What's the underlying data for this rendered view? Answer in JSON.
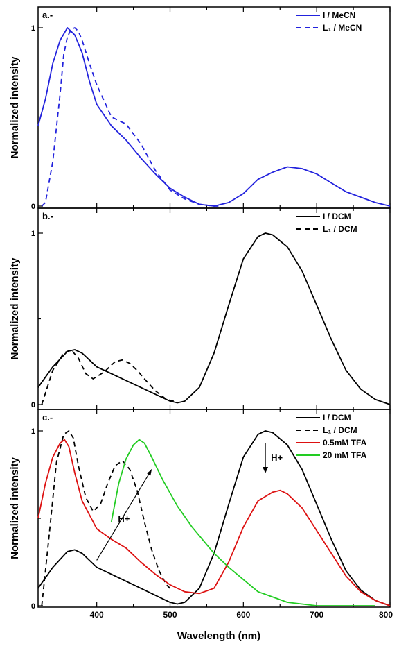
{
  "chart_data": [
    {
      "panel": "a.-",
      "type": "line",
      "ylabel": "Normalized intensity",
      "xlim": [
        320,
        800
      ],
      "ylim": [
        0,
        1.0
      ],
      "ytick_labels": [
        "0",
        "1"
      ],
      "legend_position": "top-right",
      "series": [
        {
          "name": "I / MeCN",
          "color": "#2222dd",
          "dash": "solid",
          "x": [
            320,
            330,
            340,
            350,
            360,
            365,
            370,
            380,
            390,
            400,
            420,
            440,
            460,
            480,
            500,
            520,
            540,
            560,
            580,
            600,
            620,
            640,
            660,
            680,
            700,
            720,
            740,
            760,
            780,
            800
          ],
          "y": [
            0.45,
            0.6,
            0.8,
            0.93,
            1.0,
            0.98,
            0.96,
            0.86,
            0.7,
            0.57,
            0.45,
            0.37,
            0.27,
            0.18,
            0.1,
            0.05,
            0.01,
            0.0,
            0.02,
            0.07,
            0.15,
            0.19,
            0.22,
            0.21,
            0.18,
            0.13,
            0.08,
            0.05,
            0.02,
            0.0
          ]
        },
        {
          "name": "L₁ / MeCN",
          "color": "#2222dd",
          "dash": "dashed",
          "x": [
            325,
            330,
            340,
            350,
            355,
            360,
            365,
            370,
            375,
            380,
            390,
            400,
            420,
            440,
            460,
            480,
            500,
            520,
            540,
            560,
            570
          ],
          "y": [
            0.0,
            0.02,
            0.25,
            0.63,
            0.85,
            0.95,
            0.99,
            1.0,
            0.98,
            0.93,
            0.8,
            0.68,
            0.5,
            0.46,
            0.35,
            0.2,
            0.09,
            0.04,
            0.01,
            0.0,
            0.0
          ]
        }
      ]
    },
    {
      "panel": "b.-",
      "type": "line",
      "ylabel": "Normalized intensity",
      "xlim": [
        320,
        800
      ],
      "ylim": [
        0,
        1.0
      ],
      "ytick_labels": [
        "0",
        "1"
      ],
      "legend_position": "top-right",
      "series": [
        {
          "name": "I / DCM",
          "color": "#000000",
          "dash": "solid",
          "x": [
            320,
            340,
            360,
            370,
            380,
            400,
            420,
            440,
            460,
            480,
            500,
            510,
            520,
            540,
            560,
            580,
            600,
            620,
            630,
            640,
            660,
            680,
            700,
            720,
            740,
            760,
            780,
            800
          ],
          "y": [
            0.1,
            0.22,
            0.31,
            0.32,
            0.3,
            0.22,
            0.18,
            0.14,
            0.1,
            0.06,
            0.02,
            0.01,
            0.02,
            0.1,
            0.3,
            0.58,
            0.85,
            0.98,
            1.0,
            0.99,
            0.92,
            0.78,
            0.58,
            0.38,
            0.2,
            0.09,
            0.03,
            0.0
          ]
        },
        {
          "name": "L₁ / DCM",
          "color": "#000000",
          "dash": "dashed",
          "x": [
            325,
            340,
            355,
            365,
            375,
            385,
            395,
            410,
            425,
            435,
            445,
            455,
            465,
            480,
            495,
            505
          ],
          "y": [
            0.0,
            0.2,
            0.3,
            0.32,
            0.27,
            0.18,
            0.15,
            0.19,
            0.25,
            0.26,
            0.24,
            0.2,
            0.15,
            0.08,
            0.03,
            0.02
          ]
        }
      ]
    },
    {
      "panel": "c.-",
      "type": "line",
      "ylabel": "Normalized intensity",
      "xlabel": "Wavelength (nm)",
      "xlim": [
        320,
        800
      ],
      "ylim": [
        0,
        1.0
      ],
      "ytick_labels": [
        "0",
        "1"
      ],
      "xtick_labels": [
        "400",
        "500",
        "600",
        "700",
        "800"
      ],
      "legend_position": "top-right",
      "series": [
        {
          "name": "I / DCM",
          "color": "#000000",
          "dash": "solid",
          "x": [
            320,
            340,
            360,
            370,
            380,
            400,
            420,
            440,
            460,
            480,
            500,
            510,
            520,
            540,
            560,
            580,
            600,
            620,
            630,
            640,
            660,
            680,
            700,
            720,
            740,
            760,
            780,
            800
          ],
          "y": [
            0.1,
            0.22,
            0.31,
            0.32,
            0.3,
            0.22,
            0.18,
            0.14,
            0.1,
            0.06,
            0.02,
            0.01,
            0.02,
            0.1,
            0.3,
            0.58,
            0.85,
            0.98,
            1.0,
            0.99,
            0.92,
            0.78,
            0.58,
            0.38,
            0.2,
            0.09,
            0.03,
            0.0
          ]
        },
        {
          "name": "L₁ / DCM",
          "color": "#000000",
          "dash": "dashed",
          "x": [
            325,
            335,
            345,
            355,
            362,
            368,
            375,
            385,
            395,
            405,
            415,
            425,
            435,
            445,
            455,
            465,
            475,
            485,
            495,
            500
          ],
          "y": [
            0.0,
            0.4,
            0.82,
            0.98,
            1.0,
            0.96,
            0.8,
            0.62,
            0.54,
            0.58,
            0.7,
            0.8,
            0.83,
            0.78,
            0.66,
            0.48,
            0.32,
            0.2,
            0.12,
            0.1
          ]
        },
        {
          "name": "0.5mM TFA",
          "color": "#dd1111",
          "dash": "solid",
          "x": [
            320,
            330,
            340,
            350,
            356,
            362,
            370,
            380,
            400,
            420,
            440,
            460,
            480,
            500,
            520,
            540,
            560,
            580,
            600,
            620,
            640,
            650,
            660,
            680,
            700,
            720,
            740,
            760,
            780,
            800
          ],
          "y": [
            0.5,
            0.7,
            0.85,
            0.93,
            0.95,
            0.91,
            0.76,
            0.6,
            0.44,
            0.38,
            0.33,
            0.25,
            0.18,
            0.12,
            0.08,
            0.07,
            0.1,
            0.25,
            0.45,
            0.6,
            0.65,
            0.66,
            0.64,
            0.56,
            0.43,
            0.3,
            0.17,
            0.08,
            0.03,
            0.0
          ]
        },
        {
          "name": "20 mM TFA",
          "color": "#22cc22",
          "dash": "solid",
          "x": [
            420,
            430,
            440,
            450,
            458,
            465,
            475,
            490,
            510,
            530,
            560,
            580,
            600,
            620,
            640,
            660,
            680,
            700,
            720,
            740,
            760,
            780
          ],
          "y": [
            0.48,
            0.7,
            0.84,
            0.92,
            0.95,
            0.93,
            0.85,
            0.72,
            0.57,
            0.45,
            0.3,
            0.22,
            0.15,
            0.08,
            0.05,
            0.02,
            0.01,
            0.0,
            0.0,
            0.0,
            0.0,
            0.0
          ]
        }
      ],
      "annotations": [
        {
          "text": "H+",
          "arrow": "up-right",
          "at_x": 440
        },
        {
          "text": "H+",
          "arrow": "down",
          "at_x": 630
        }
      ]
    }
  ]
}
